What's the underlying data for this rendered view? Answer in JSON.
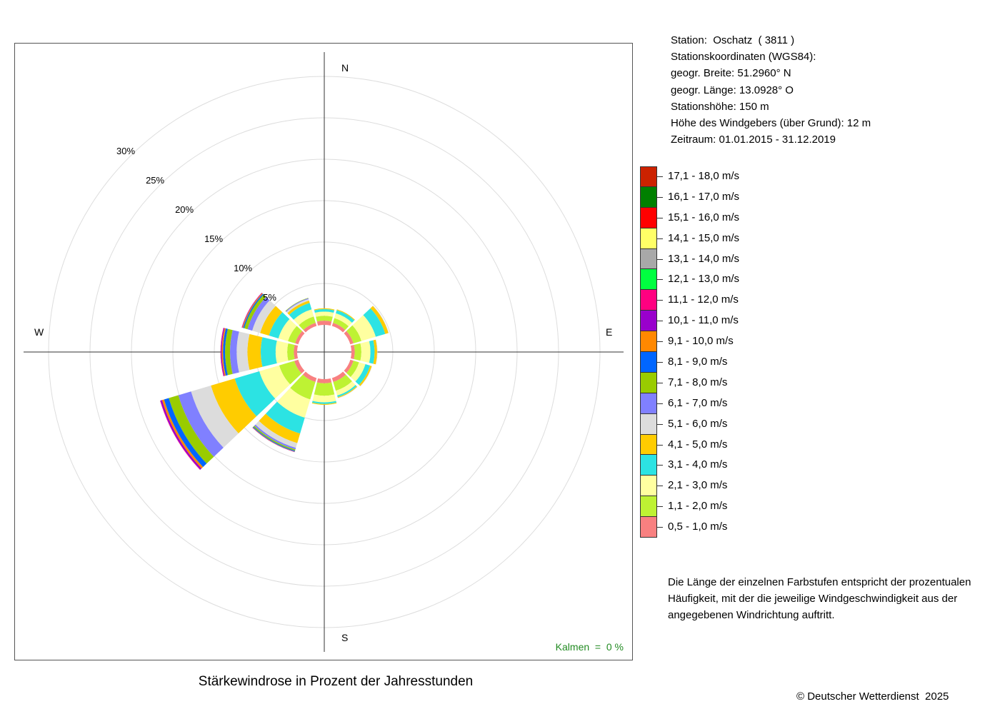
{
  "chart_data": {
    "type": "windrose",
    "title": "Stärkewindrose in Prozent der Jahresstunden",
    "compass": {
      "N": "N",
      "E": "E",
      "S": "S",
      "W": "W"
    },
    "ring_labels": [
      "5%",
      "10%",
      "15%",
      "20%",
      "25%",
      "30%"
    ],
    "ring_values": [
      5,
      10,
      15,
      20,
      25,
      30
    ],
    "calm_text": "Kalmen  =  0 %",
    "speed_classes": [
      {
        "label": "0,5 - 1,0 m/s",
        "color": "#F88080"
      },
      {
        "label": "1,1 - 2,0 m/s",
        "color": "#BEF233"
      },
      {
        "label": "2,1 - 3,0 m/s",
        "color": "#FFFFA0"
      },
      {
        "label": "3,1 - 4,0 m/s",
        "color": "#2CE3E3"
      },
      {
        "label": "4,1 - 5,0 m/s",
        "color": "#FFCC00"
      },
      {
        "label": "5,1 - 6,0 m/s",
        "color": "#DCDCDC"
      },
      {
        "label": "6,1 - 7,0 m/s",
        "color": "#8080FF"
      },
      {
        "label": "7,1 - 8,0 m/s",
        "color": "#99CC00"
      },
      {
        "label": "8,1 - 9,0 m/s",
        "color": "#0066FF"
      },
      {
        "label": "9,1 - 10,0 m/s",
        "color": "#FF8800"
      },
      {
        "label": "10,1 - 11,0 m/s",
        "color": "#9900CC"
      },
      {
        "label": "11,1 - 12,0 m/s",
        "color": "#FF0080"
      },
      {
        "label": "12,1 - 13,0 m/s",
        "color": "#00FF40"
      },
      {
        "label": "13,1 - 14,0 m/s",
        "color": "#A8A8A8"
      },
      {
        "label": "14,1 - 15,0 m/s",
        "color": "#FFFF66"
      },
      {
        "label": "15,1 - 16,0 m/s",
        "color": "#FF0000"
      },
      {
        "label": "16,1 - 17,0 m/s",
        "color": "#008000"
      },
      {
        "label": "17,1 - 18,0 m/s",
        "color": "#CC2200"
      }
    ],
    "sectors": [
      {
        "direction_deg": 0,
        "values": [
          0.5,
          0.6,
          0.5,
          0.3,
          0.1
        ]
      },
      {
        "direction_deg": 30,
        "values": [
          0.4,
          0.6,
          0.6,
          0.4,
          0.1
        ]
      },
      {
        "direction_deg": 60,
        "values": [
          0.4,
          1.0,
          1.8,
          1.2,
          0.4,
          0.05
        ]
      },
      {
        "direction_deg": 90,
        "values": [
          0.4,
          0.8,
          1.1,
          0.5,
          0.3,
          0.05
        ]
      },
      {
        "direction_deg": 120,
        "values": [
          0.4,
          0.7,
          0.8,
          0.6,
          0.2,
          0.05
        ]
      },
      {
        "direction_deg": 150,
        "values": [
          0.5,
          1.1,
          0.6,
          0.2,
          0.1,
          0.05
        ]
      },
      {
        "direction_deg": 180,
        "values": [
          0.5,
          1.5,
          0.8,
          0.2,
          0.1
        ]
      },
      {
        "direction_deg": 210,
        "values": [
          0.5,
          2.2,
          2.3,
          2.0,
          1.2,
          0.6,
          0.2,
          0.15,
          0.1,
          0.05,
          0.03
        ]
      },
      {
        "direction_deg": 240,
        "values": [
          0.5,
          1.9,
          2.5,
          3.1,
          3.0,
          2.5,
          1.6,
          1.2,
          0.6,
          0.25,
          0.2,
          0.05
        ]
      },
      {
        "direction_deg": 270,
        "values": [
          0.4,
          0.8,
          1.4,
          1.8,
          1.6,
          1.3,
          0.8,
          0.6,
          0.25,
          0.15,
          0.1,
          0.05
        ]
      },
      {
        "direction_deg": 300,
        "values": [
          0.4,
          0.9,
          1.2,
          1.2,
          1.1,
          1.0,
          0.6,
          0.4,
          0.15,
          0.1,
          0.05,
          0.03
        ]
      },
      {
        "direction_deg": 330,
        "values": [
          0.4,
          0.8,
          0.9,
          0.8,
          0.3,
          0.2,
          0.1,
          0.05
        ]
      }
    ]
  },
  "station": {
    "line1": "Station:  Oschatz  ( 3811 )",
    "line2": "Stationskoordinaten (WGS84):",
    "line3": "geogr. Breite: 51.2960° N",
    "line4": "geogr. Länge: 13.0928° O",
    "line5": "Stationshöhe: 150 m",
    "line6": "Höhe des Windgebers (über Grund): 12 m",
    "line7": "Zeitraum: 01.01.2015 - 31.12.2019"
  },
  "note": "Die Länge der einzelnen Farbstufen entspricht der prozentualen Häufigkeit, mit der die jeweilige Windgeschwindigkeit aus der angegebenen Windrichtung auftritt.",
  "copyright": "© Deutscher Wetterdienst  2025"
}
